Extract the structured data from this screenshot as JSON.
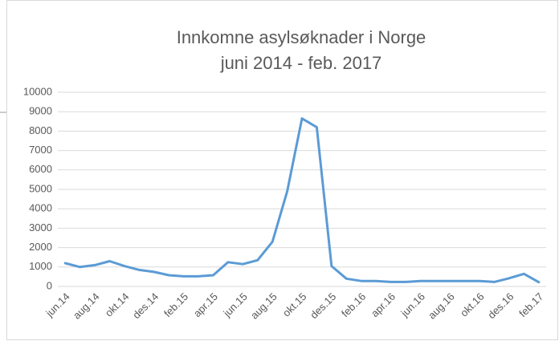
{
  "chart_data": {
    "type": "line",
    "title": "Innkomne asylsøknader i Norge",
    "subtitle": "juni 2014 - feb. 2017",
    "categories": [
      "jun.14",
      null,
      "aug.14",
      null,
      "okt.14",
      null,
      "des.14",
      null,
      "feb.15",
      null,
      "apr.15",
      null,
      "jun.15",
      null,
      "aug.15",
      null,
      "okt.15",
      null,
      "des.15",
      null,
      "feb.16",
      null,
      "apr.16",
      null,
      "jun.16",
      null,
      "aug.16",
      null,
      "okt.16",
      null,
      "des.16",
      null,
      "feb.17"
    ],
    "series": [
      {
        "name": "Asylsøknader",
        "color": "#5b9bd5",
        "values": [
          1200,
          1000,
          1100,
          1300,
          1050,
          850,
          750,
          580,
          520,
          520,
          580,
          1250,
          1150,
          1350,
          2300,
          4900,
          8650,
          8200,
          1050,
          400,
          280,
          280,
          230,
          230,
          280,
          280,
          280,
          280,
          280,
          230,
          420,
          650,
          220
        ]
      }
    ],
    "ylim": [
      0,
      10000
    ],
    "yticks": [
      0,
      1000,
      2000,
      3000,
      4000,
      5000,
      6000,
      7000,
      8000,
      9000,
      10000
    ],
    "grid": true
  }
}
